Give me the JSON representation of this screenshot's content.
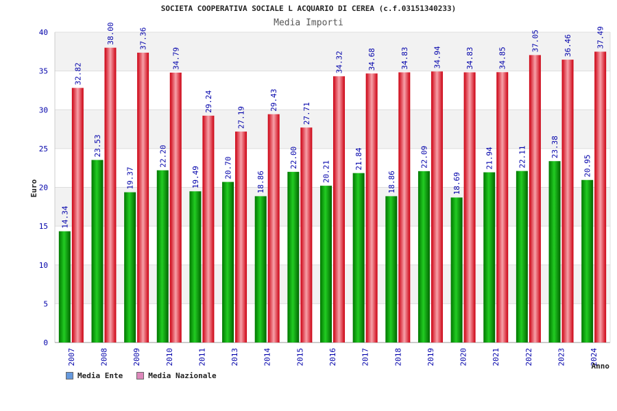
{
  "chart_data": {
    "type": "bar",
    "title": "SOCIETA COOPERATIVA SOCIALE L ACQUARIO DI CEREA (c.f.03151340233)",
    "subtitle": "Media Importi",
    "xlabel": "Anno",
    "ylabel": "Euro",
    "ylim": [
      0,
      40
    ],
    "yticks": [
      0,
      5,
      10,
      15,
      20,
      25,
      30,
      35,
      40
    ],
    "grid": true,
    "legend_position": "bottom-left",
    "categories": [
      "2007",
      "2008",
      "2009",
      "2010",
      "2011",
      "2013",
      "2014",
      "2015",
      "2016",
      "2017",
      "2018",
      "2019",
      "2020",
      "2021",
      "2022",
      "2023",
      "2024"
    ],
    "series": [
      {
        "name": "Media Ente",
        "color": "#00aa00",
        "legend_color": "#6699dd",
        "values": [
          14.34,
          23.53,
          19.37,
          22.2,
          19.49,
          20.7,
          18.86,
          22.0,
          20.21,
          21.84,
          18.86,
          22.09,
          18.69,
          21.94,
          22.11,
          23.38,
          20.95
        ],
        "labels": [
          "14.34",
          "23.53",
          "19.37",
          "22.20",
          "19.49",
          "20.70",
          "18.86",
          "22.00",
          "20.21",
          "21.84",
          "18.86",
          "22.09",
          "18.69",
          "21.94",
          "22.11",
          "23.38",
          "20.95"
        ]
      },
      {
        "name": "Media Nazionale",
        "color": "#ee1122",
        "legend_color": "#dd88bb",
        "values": [
          32.82,
          38.0,
          37.36,
          34.79,
          29.24,
          27.19,
          29.43,
          27.71,
          34.32,
          34.68,
          34.83,
          34.94,
          34.83,
          34.85,
          37.05,
          36.46,
          37.49
        ],
        "labels": [
          "32.82",
          "38.00",
          "37.36",
          "34.79",
          "29.24",
          "27.19",
          "29.43",
          "27.71",
          "34.32",
          "34.68",
          "34.83",
          "34.94",
          "34.83",
          "34.85",
          "37.05",
          "36.46",
          "37.49"
        ]
      }
    ]
  }
}
